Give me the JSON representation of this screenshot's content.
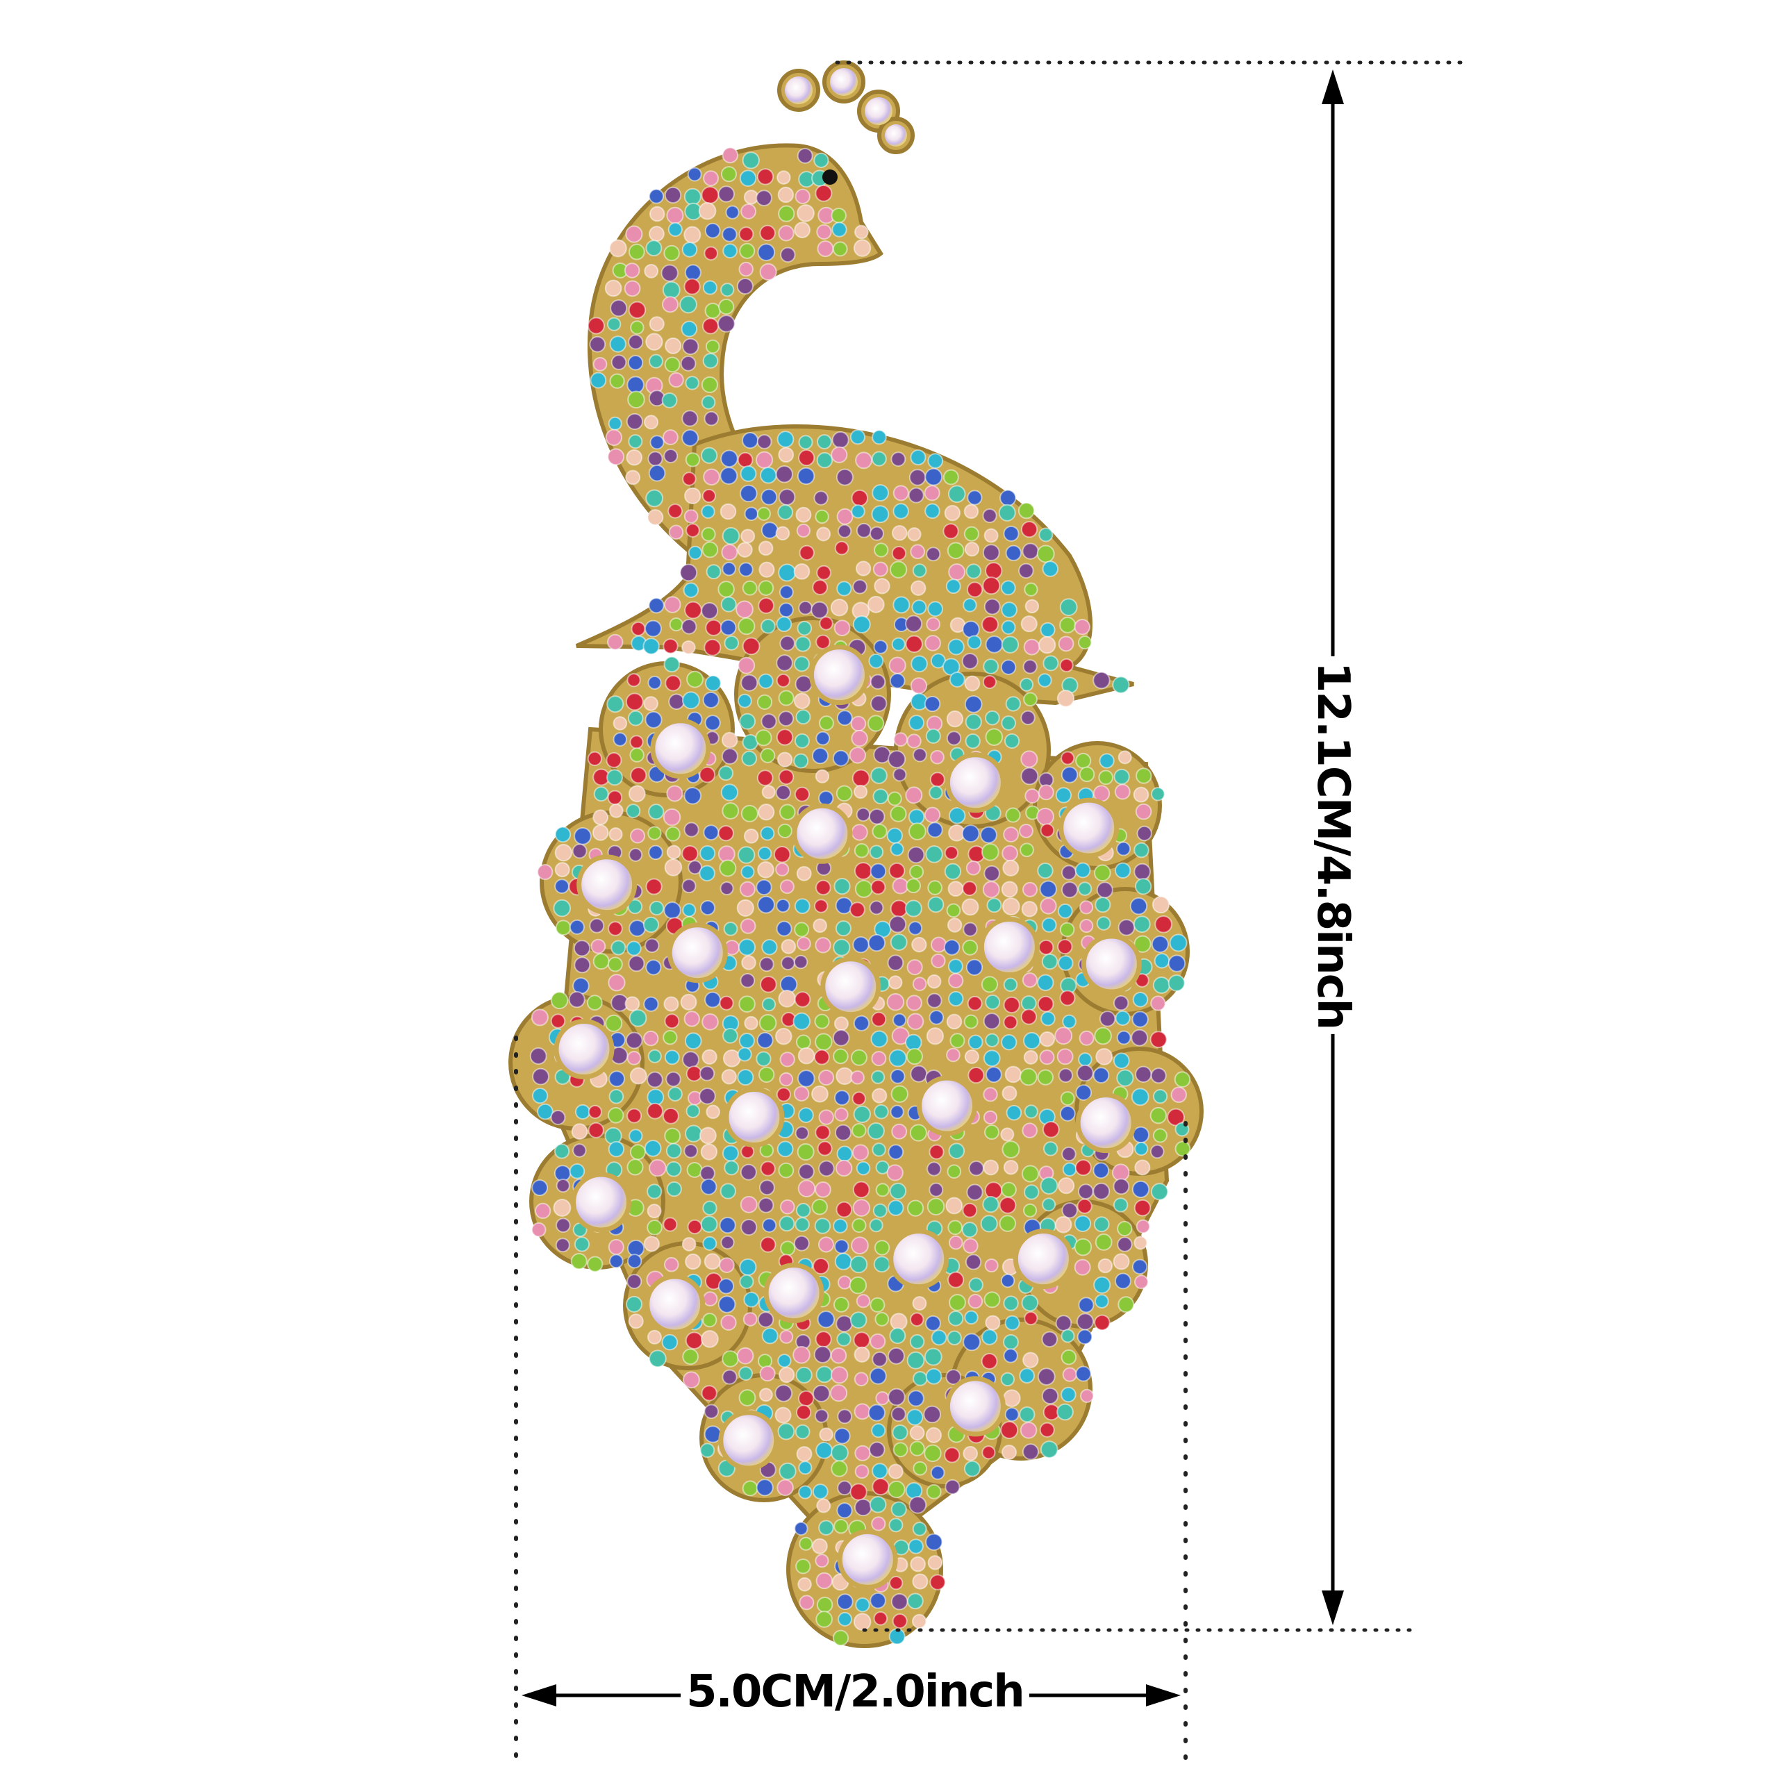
{
  "product": {
    "subject": "peacock rhinestone brooch",
    "metal_color": "#c9a850",
    "gem_palette": [
      "#2fb6d0",
      "#e88fb0",
      "#d22a3a",
      "#3a62c8",
      "#8ac83a",
      "#7a4a8a",
      "#f2c7b0",
      "#45c0a8"
    ]
  },
  "dimensions": {
    "width_label": "5.0CM/2.0inch",
    "height_label": "12.1CM/4.8inch"
  }
}
